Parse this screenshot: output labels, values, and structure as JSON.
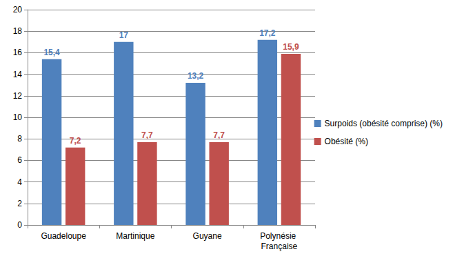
{
  "chart_data": {
    "type": "bar",
    "categories": [
      "Guadeloupe",
      "Martinique",
      "Guyane",
      "Polynésie Française"
    ],
    "series": [
      {
        "name": "Surpoids (obésité comprise) (%)",
        "color": "#4f81bd",
        "values": [
          15.4,
          17,
          13.2,
          17.2
        ],
        "value_labels": [
          "15,4",
          "17",
          "13,2",
          "17,2"
        ]
      },
      {
        "name": "Obésité (%)",
        "color": "#c0504d",
        "values": [
          7.2,
          7.7,
          7.7,
          15.9
        ],
        "value_labels": [
          "7,2",
          "7,7",
          "7,7",
          "15,9"
        ]
      }
    ],
    "ylim": [
      0,
      20
    ],
    "yticks": [
      0,
      2,
      4,
      6,
      8,
      10,
      12,
      14,
      16,
      18,
      20
    ],
    "grid": true,
    "legend": "right",
    "data_labels": true
  }
}
